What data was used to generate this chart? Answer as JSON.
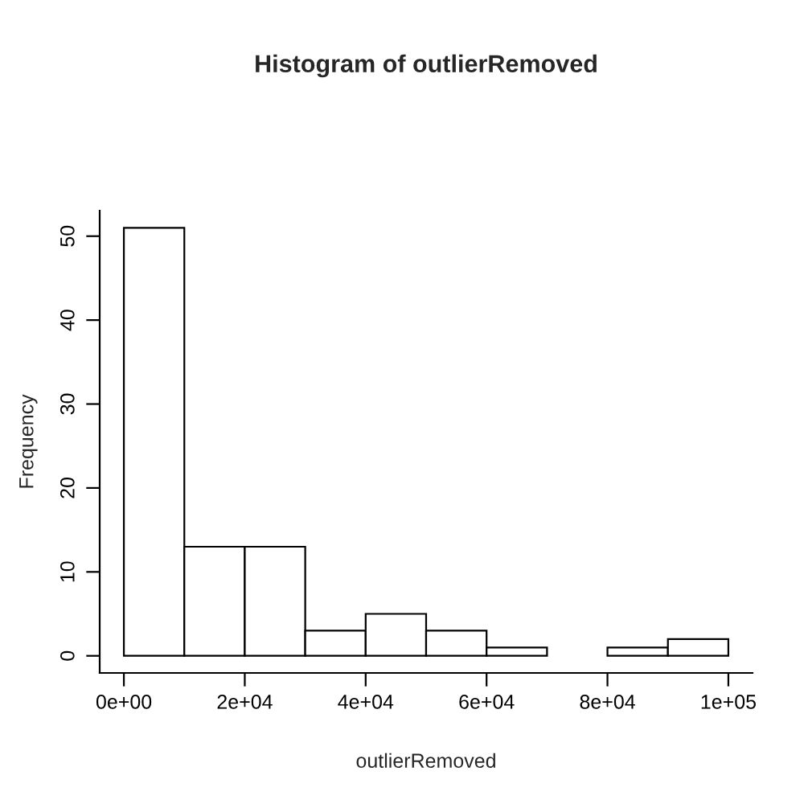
{
  "chart_data": {
    "type": "histogram",
    "title": "Histogram of outlierRemoved",
    "xlabel": "outlierRemoved",
    "ylabel": "Frequency",
    "bins": [
      0,
      10000,
      20000,
      30000,
      40000,
      50000,
      60000,
      70000,
      80000,
      90000,
      100000
    ],
    "values": [
      51,
      13,
      13,
      3,
      5,
      3,
      1,
      0,
      1,
      2
    ],
    "color": "#ffffff",
    "xlim": [
      -4000,
      104000
    ],
    "ylim": [
      -2.04,
      53.04
    ],
    "xticks": [
      {
        "value": 0,
        "label": "0e+00"
      },
      {
        "value": 20000,
        "label": "2e+04"
      },
      {
        "value": 40000,
        "label": "4e+04"
      },
      {
        "value": 60000,
        "label": "6e+04"
      },
      {
        "value": 80000,
        "label": "8e+04"
      },
      {
        "value": 100000,
        "label": "1e+05"
      }
    ],
    "yticks": [
      0,
      10,
      20,
      30,
      40,
      50
    ]
  }
}
